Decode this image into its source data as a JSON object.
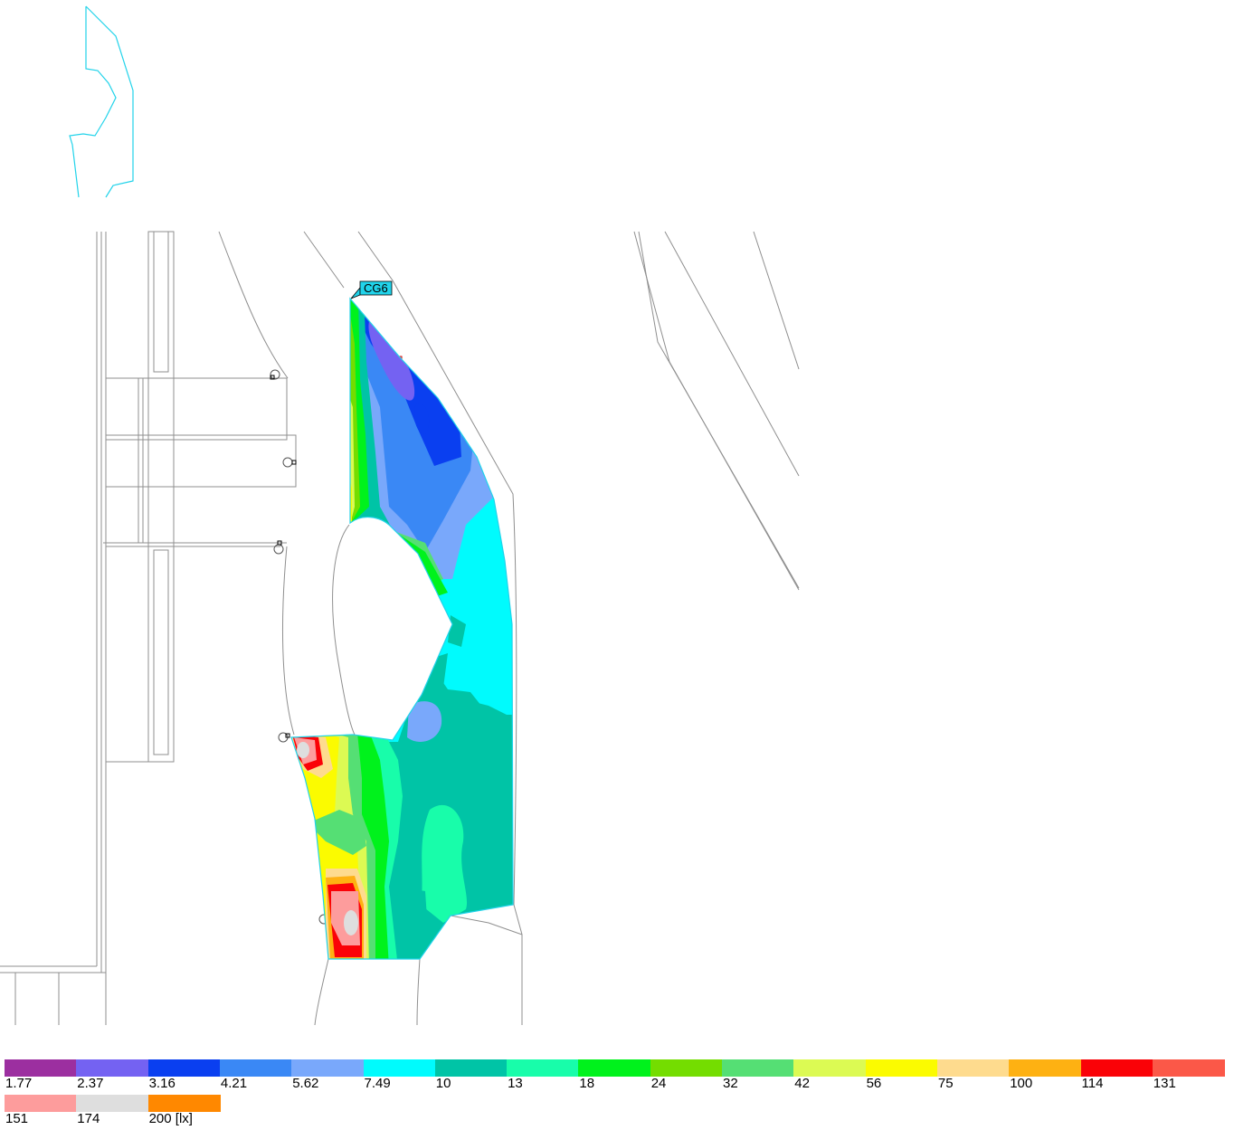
{
  "plan": {
    "area_label": "CG6"
  },
  "legend": {
    "unit_suffix": "[lx]",
    "levels": [
      {
        "value": "1.77",
        "color": "#9c2fa0"
      },
      {
        "value": "2.37",
        "color": "#7462f2"
      },
      {
        "value": "3.16",
        "color": "#0a3ff0"
      },
      {
        "value": "4.21",
        "color": "#3a88f5"
      },
      {
        "value": "5.62",
        "color": "#79a8fb"
      },
      {
        "value": "7.49",
        "color": "#00fbfd"
      },
      {
        "value": "10",
        "color": "#00c4a6"
      },
      {
        "value": "13",
        "color": "#18fdaa"
      },
      {
        "value": "18",
        "color": "#00f21c"
      },
      {
        "value": "24",
        "color": "#74dd00"
      },
      {
        "value": "32",
        "color": "#55df74"
      },
      {
        "value": "42",
        "color": "#dcfa53"
      },
      {
        "value": "56",
        "color": "#fbfb00"
      },
      {
        "value": "75",
        "color": "#fedb8e"
      },
      {
        "value": "100",
        "color": "#feb112"
      },
      {
        "value": "114",
        "color": "#fa0207"
      },
      {
        "value": "131",
        "color": "#fb5848"
      },
      {
        "value": "151",
        "color": "#fd9c9c"
      },
      {
        "value": "174",
        "color": "#dedede"
      },
      {
        "value": "200",
        "color": "#ff8800"
      }
    ]
  }
}
